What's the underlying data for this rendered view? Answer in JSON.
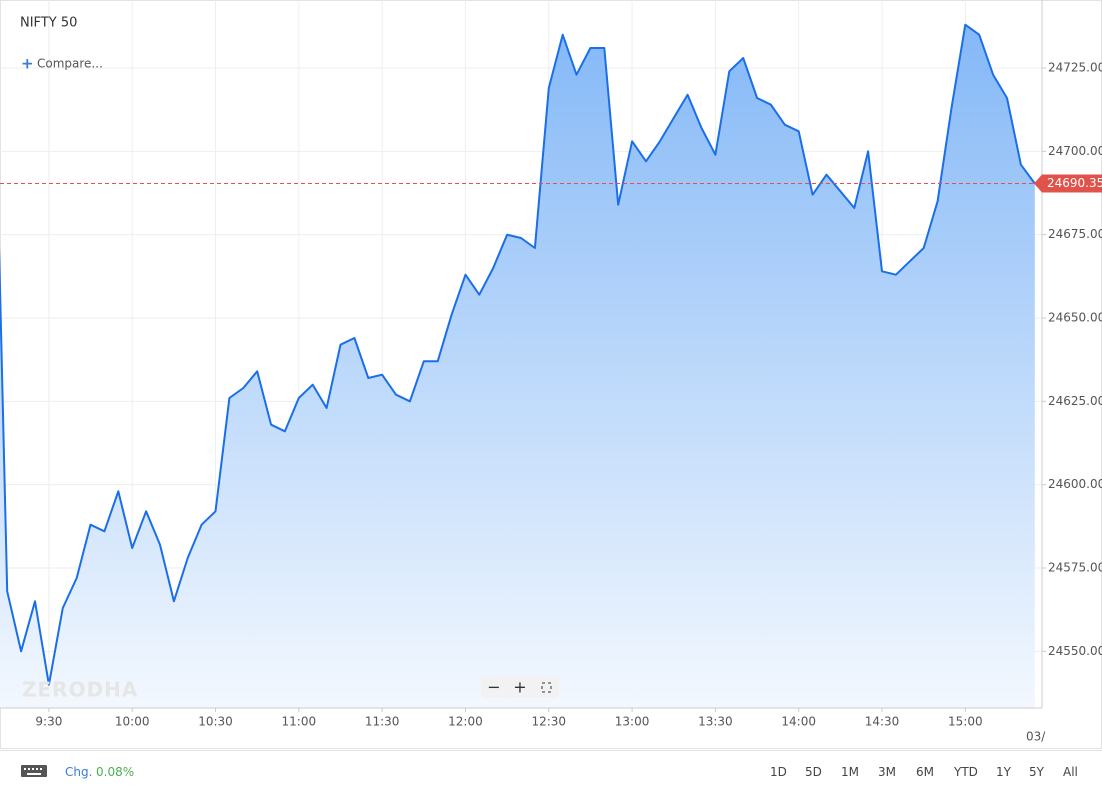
{
  "chart_data": {
    "type": "area",
    "title": "NIFTY 50",
    "compare": "Compare...",
    "watermark": "ZERODHA",
    "date_label": "03/",
    "x": [
      552,
      555,
      560,
      565,
      570,
      575,
      580,
      585,
      590,
      595,
      600,
      605,
      610,
      615,
      620,
      625,
      630,
      635,
      640,
      645,
      650,
      655,
      660,
      665,
      670,
      675,
      680,
      685,
      690,
      695,
      700,
      705,
      710,
      715,
      720,
      725,
      730,
      735,
      740,
      745,
      750,
      755,
      760,
      765,
      770,
      775,
      780,
      785,
      790,
      795,
      800,
      805,
      810,
      815,
      820,
      825,
      830,
      835,
      840,
      845,
      850,
      855,
      860,
      865,
      870,
      875,
      880,
      885,
      890,
      895,
      900,
      905,
      910,
      915,
      920,
      925
    ],
    "values": [
      24673,
      24568,
      24550,
      24565,
      24540,
      24563,
      24572,
      24588,
      24586,
      24598,
      24581,
      24592,
      24582,
      24565,
      24578,
      24588,
      24592,
      24626,
      24629,
      24634,
      24618,
      24616,
      24626,
      24630,
      24623,
      24642,
      24644,
      24632,
      24633,
      24627,
      24625,
      24637,
      24637,
      24651,
      24663,
      24657,
      24665,
      24675,
      24674,
      24671,
      24719,
      24735,
      24723,
      24731,
      24731,
      24684,
      24703,
      24697,
      24703,
      24710,
      24717,
      24707,
      24699,
      24724,
      24728,
      24716,
      24714,
      24708,
      24706,
      24687,
      24693,
      24688,
      24683,
      24700,
      24664,
      24663,
      24667,
      24671,
      24685,
      24713,
      24738,
      24735,
      24723,
      24716,
      24696,
      24690.35
    ],
    "color": "#1a6fe8",
    "last_price": 24690.35,
    "last_price_color": "#e0524a",
    "xlim": [
      552.4,
      927.6
    ],
    "xticks": [
      {
        "value": 570,
        "label": "9:30"
      },
      {
        "value": 600,
        "label": "10:00"
      },
      {
        "value": 630,
        "label": "10:30"
      },
      {
        "value": 660,
        "label": "11:00"
      },
      {
        "value": 690,
        "label": "11:30"
      },
      {
        "value": 720,
        "label": "12:00"
      },
      {
        "value": 750,
        "label": "12:30"
      },
      {
        "value": 780,
        "label": "13:00"
      },
      {
        "value": 810,
        "label": "13:30"
      },
      {
        "value": 840,
        "label": "14:00"
      },
      {
        "value": 870,
        "label": "14:30"
      },
      {
        "value": 900,
        "label": "15:00"
      }
    ],
    "ylim": [
      24533,
      24745.4
    ],
    "yticks": [
      {
        "value": 24550,
        "label": "24550.00"
      },
      {
        "value": 24575,
        "label": "24575.00"
      },
      {
        "value": 24600,
        "label": "24600.00"
      },
      {
        "value": 24625,
        "label": "24625.00"
      },
      {
        "value": 24650,
        "label": "24650.00"
      },
      {
        "value": 24675,
        "label": "24675.00"
      },
      {
        "value": 24700,
        "label": "24700.00"
      },
      {
        "value": 24725,
        "label": "24725.00"
      }
    ],
    "grid": true
  },
  "footer": {
    "change_label": "Chg.",
    "change": "0.08%",
    "ranges": [
      "1D",
      "5D",
      "1M",
      "3M",
      "6M",
      "YTD",
      "1Y",
      "5Y",
      "All"
    ]
  }
}
